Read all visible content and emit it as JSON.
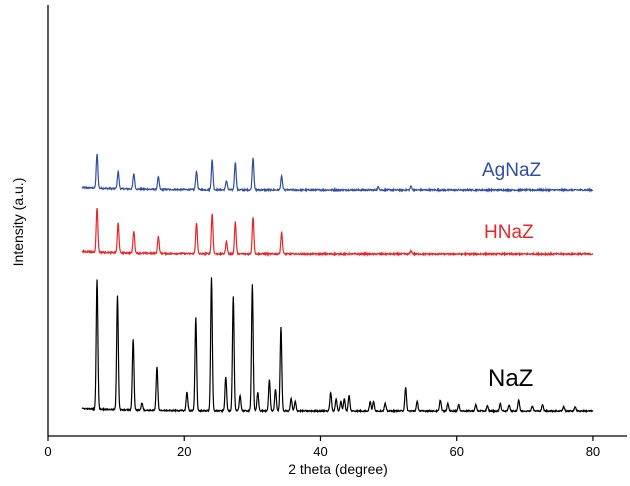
{
  "chart_data": {
    "type": "line",
    "xlabel": "2 theta (degree)",
    "ylabel": "Intensity (a.u.)",
    "xlim": [
      0,
      85
    ],
    "xticks": [
      0,
      20,
      40,
      60,
      80
    ],
    "x_range": [
      5,
      80
    ],
    "y_ticks_labeled": false,
    "grid": false,
    "legend": "inline labels to the right of each trace",
    "series": [
      {
        "name": "AgNaZ",
        "color": "#2e4fa3",
        "baseline": 0.0,
        "noise": 0.012,
        "peaks": [
          [
            7.2,
            0.55
          ],
          [
            10.3,
            0.28
          ],
          [
            12.6,
            0.25
          ],
          [
            16.2,
            0.2
          ],
          [
            21.8,
            0.3
          ],
          [
            24.1,
            0.48
          ],
          [
            26.2,
            0.15
          ],
          [
            27.5,
            0.45
          ],
          [
            30.1,
            0.52
          ],
          [
            34.3,
            0.22
          ],
          [
            48.5,
            0.05
          ],
          [
            53.3,
            0.06
          ]
        ],
        "label_size": 19
      },
      {
        "name": "HNaZ",
        "color": "#e8262a",
        "baseline": 0.0,
        "noise": 0.012,
        "peaks": [
          [
            7.2,
            0.72
          ],
          [
            10.3,
            0.48
          ],
          [
            12.6,
            0.36
          ],
          [
            16.2,
            0.27
          ],
          [
            21.8,
            0.5
          ],
          [
            24.1,
            0.65
          ],
          [
            26.2,
            0.2
          ],
          [
            27.5,
            0.52
          ],
          [
            30.1,
            0.6
          ],
          [
            34.3,
            0.35
          ],
          [
            53.3,
            0.05
          ]
        ],
        "label_size": 19
      },
      {
        "name": "NaZ",
        "color": "#000000",
        "baseline": 0.0,
        "noise": 0.01,
        "peaks": [
          [
            7.2,
            2.1
          ],
          [
            10.2,
            1.85
          ],
          [
            12.5,
            1.15
          ],
          [
            13.8,
            0.12
          ],
          [
            16.0,
            0.7
          ],
          [
            20.4,
            0.3
          ],
          [
            21.7,
            1.5
          ],
          [
            24.0,
            2.15
          ],
          [
            26.1,
            0.55
          ],
          [
            27.2,
            1.85
          ],
          [
            28.2,
            0.25
          ],
          [
            30.0,
            2.05
          ],
          [
            30.8,
            0.3
          ],
          [
            32.5,
            0.5
          ],
          [
            33.4,
            0.35
          ],
          [
            34.2,
            1.35
          ],
          [
            35.7,
            0.2
          ],
          [
            36.3,
            0.15
          ],
          [
            41.5,
            0.3
          ],
          [
            42.3,
            0.2
          ],
          [
            43.0,
            0.15
          ],
          [
            43.5,
            0.2
          ],
          [
            44.2,
            0.25
          ],
          [
            47.3,
            0.15
          ],
          [
            47.8,
            0.15
          ],
          [
            49.5,
            0.12
          ],
          [
            52.5,
            0.38
          ],
          [
            54.2,
            0.15
          ],
          [
            57.6,
            0.18
          ],
          [
            58.7,
            0.12
          ],
          [
            60.3,
            0.1
          ],
          [
            62.8,
            0.1
          ],
          [
            64.5,
            0.08
          ],
          [
            66.4,
            0.12
          ],
          [
            67.7,
            0.1
          ],
          [
            69.1,
            0.18
          ],
          [
            71.1,
            0.08
          ],
          [
            72.6,
            0.1
          ],
          [
            75.7,
            0.07
          ],
          [
            77.4,
            0.07
          ]
        ],
        "label_size": 24
      }
    ]
  }
}
